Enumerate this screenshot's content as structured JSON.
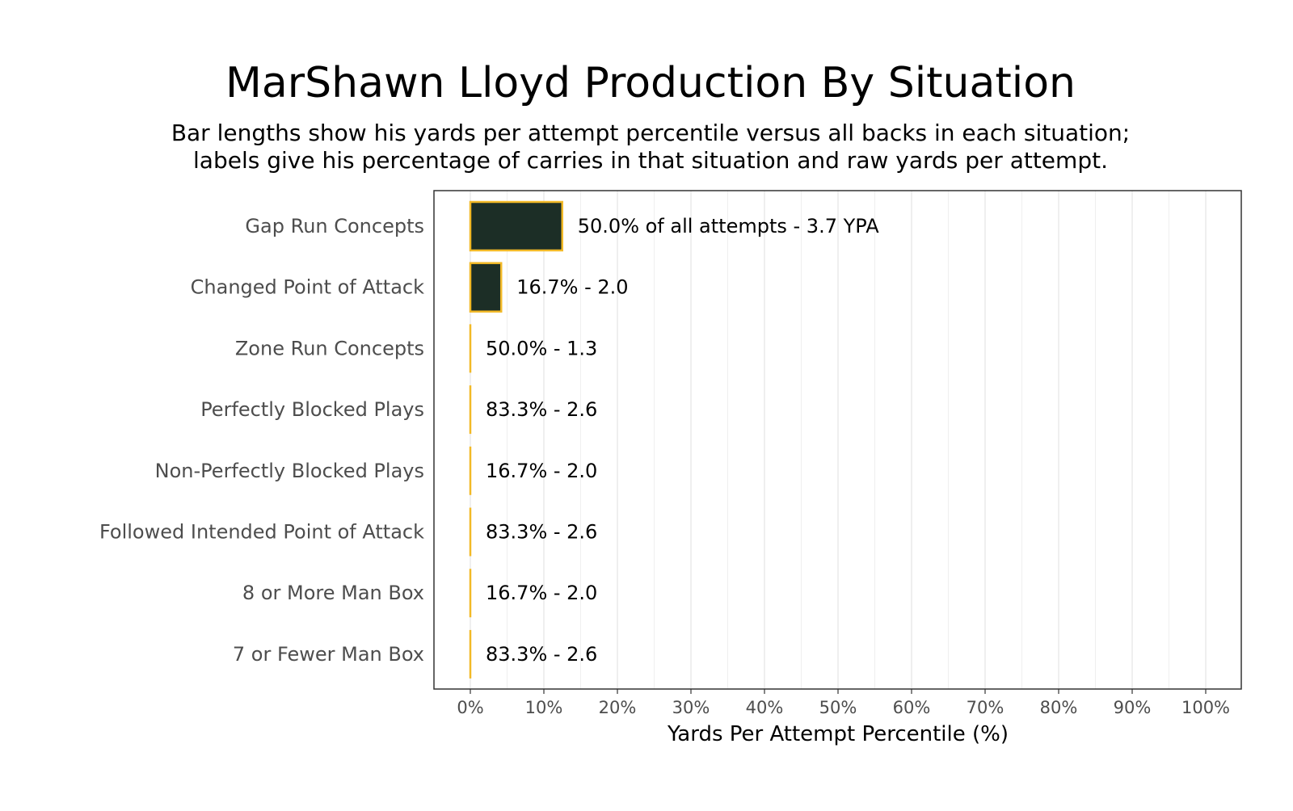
{
  "chart_data": {
    "type": "bar",
    "orientation": "horizontal",
    "title": "MarShawn Lloyd Production By Situation",
    "subtitle_lines": [
      "Bar lengths show his yards per attempt percentile versus all backs in each situation;",
      "labels give his percentage of carries in that situation and raw yards per attempt."
    ],
    "xlabel": "Yards Per Attempt Percentile (%)",
    "ylabel": "",
    "xlim": [
      0,
      100
    ],
    "x_ticks": [
      0,
      10,
      20,
      30,
      40,
      50,
      60,
      70,
      80,
      90,
      100
    ],
    "x_tick_labels": [
      "0%",
      "10%",
      "20%",
      "30%",
      "40%",
      "50%",
      "60%",
      "70%",
      "80%",
      "90%",
      "100%"
    ],
    "grid": true,
    "categories": [
      "Gap Run Concepts",
      "Changed Point of Attack",
      "Zone Run Concepts",
      "Perfectly Blocked Plays",
      "Non-Perfectly Blocked Plays",
      "Followed Intended Point of Attack",
      "8 or More Man Box",
      "7 or Fewer Man Box"
    ],
    "values": [
      12.5,
      4.2,
      0,
      0,
      0,
      0,
      0,
      0
    ],
    "labels": [
      "50.0% of all attempts - 3.7 YPA",
      "16.7% - 2.0",
      "50.0% - 1.3",
      "83.3% - 2.6",
      "16.7% - 2.0",
      "83.3% - 2.6",
      "16.7% - 2.0",
      "83.3% - 2.6"
    ],
    "colors": {
      "bar_fill": "#1c2e26",
      "bar_outline": "#f2b927",
      "grid": "#ebebeb",
      "panel_border": "#333333"
    }
  }
}
